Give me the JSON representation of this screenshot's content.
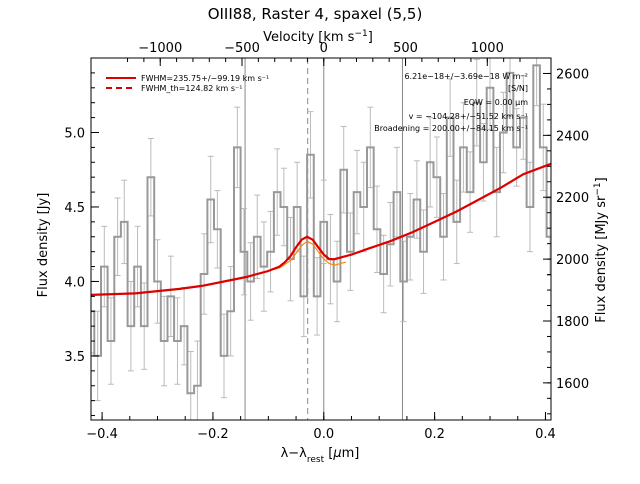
{
  "chart_data": {
    "type": "line",
    "title": "OIII88, Raster 4, spaxel (5,5)",
    "xlabel": "λ−λrest [μm]",
    "ylabel_left": "Flux density [Jy]",
    "ylabel_right": "Flux density [MJy sr⁻¹]",
    "xlabel_top": "Velocity [km s⁻¹]",
    "xlim": [
      -0.42,
      0.41
    ],
    "ylim_left": [
      3.07,
      5.5
    ],
    "ylim_right": [
      1480,
      2650
    ],
    "xticks": [
      -0.4,
      -0.2,
      0.0,
      0.2,
      0.4
    ],
    "xtick_labels": [
      "−0.4",
      "−0.2",
      "0.0",
      "0.2",
      "0.4"
    ],
    "yticks_left": [
      3.5,
      4.0,
      4.5,
      5.0
    ],
    "ytick_labels_left": [
      "3.5",
      "4.0",
      "4.5",
      "5.0"
    ],
    "yticks_right": [
      1600,
      1800,
      2000,
      2200,
      2400,
      2600
    ],
    "ytick_labels_right": [
      "1600",
      "1800",
      "2000",
      "2200",
      "2400",
      "2600"
    ],
    "velocity_ticks": [
      -1000,
      -500,
      0,
      500,
      1000
    ],
    "velocity_tick_labels": [
      "−1000",
      "−500",
      "0",
      "500",
      "1000"
    ],
    "velocity_per_micron": 3389,
    "vertical_lines_solid": [
      -0.142,
      0.0,
      0.142
    ],
    "vertical_line_dashed": -0.029,
    "legend": [
      {
        "label": "FWHM=235.75+/−99.19 km s⁻¹",
        "style": "solid",
        "color": "#dd0000"
      },
      {
        "label": "FWHM_th=124.82 km s⁻¹",
        "style": "dashed",
        "color": "#dd0000"
      }
    ],
    "annotations": [
      "6.21e−18+/−3.69e−18 W m⁻²",
      "[S/N]",
      "EQW = 0.00 μm",
      "v = −104.28+/−51.52 km s⁻¹",
      "Broadening = 200.00+/−84.15 km s⁻¹"
    ],
    "series": [
      {
        "name": "spectrum",
        "color": "#999999",
        "x": [
          -0.42,
          -0.408,
          -0.396,
          -0.384,
          -0.372,
          -0.36,
          -0.348,
          -0.336,
          -0.324,
          -0.312,
          -0.3,
          -0.288,
          -0.276,
          -0.264,
          -0.252,
          -0.24,
          -0.228,
          -0.216,
          -0.204,
          -0.192,
          -0.18,
          -0.168,
          -0.156,
          -0.144,
          -0.132,
          -0.12,
          -0.108,
          -0.096,
          -0.084,
          -0.072,
          -0.06,
          -0.048,
          -0.036,
          -0.024,
          -0.012,
          0.0,
          0.012,
          0.024,
          0.036,
          0.048,
          0.06,
          0.072,
          0.084,
          0.096,
          0.108,
          0.12,
          0.132,
          0.144,
          0.156,
          0.168,
          0.18,
          0.192,
          0.204,
          0.216,
          0.228,
          0.24,
          0.252,
          0.264,
          0.276,
          0.288,
          0.3,
          0.312,
          0.324,
          0.336,
          0.348,
          0.36,
          0.372,
          0.384,
          0.396,
          0.408
        ],
        "y": [
          3.8,
          3.5,
          4.1,
          3.6,
          4.3,
          4.4,
          3.7,
          4.1,
          3.7,
          4.7,
          4.0,
          3.6,
          3.9,
          3.6,
          3.7,
          3.25,
          3.3,
          4.05,
          4.55,
          4.35,
          3.5,
          3.8,
          4.9,
          4.2,
          4.0,
          4.3,
          4.1,
          4.2,
          4.6,
          4.5,
          4.15,
          4.5,
          3.9,
          4.85,
          3.9,
          4.4,
          4.15,
          4.0,
          4.75,
          4.2,
          4.6,
          4.5,
          4.9,
          4.35,
          4.05,
          4.25,
          4.6,
          4.0,
          4.3,
          4.55,
          4.2,
          4.8,
          4.7,
          4.3,
          5.1,
          4.4,
          4.9,
          4.6,
          5.2,
          4.8,
          5.3,
          4.6,
          5.0,
          5.4,
          4.9,
          5.1,
          4.5,
          5.45,
          4.9,
          4.3
        ],
        "errors": [
          0.28,
          0.3,
          0.27,
          0.29,
          0.26,
          0.28,
          0.3,
          0.27,
          0.29,
          0.26,
          0.28,
          0.3,
          0.27,
          0.29,
          0.26,
          0.28,
          0.3,
          0.27,
          0.29,
          0.26,
          0.28,
          0.3,
          0.27,
          0.29,
          0.26,
          0.28,
          0.3,
          0.27,
          0.29,
          0.26,
          0.28,
          0.3,
          0.27,
          0.29,
          0.26,
          0.28,
          0.3,
          0.27,
          0.29,
          0.26,
          0.28,
          0.3,
          0.27,
          0.29,
          0.26,
          0.28,
          0.3,
          0.27,
          0.29,
          0.26,
          0.28,
          0.3,
          0.27,
          0.29,
          0.26,
          0.28,
          0.3,
          0.27,
          0.29,
          0.26,
          0.28,
          0.3,
          0.27,
          0.29,
          0.26,
          0.28,
          0.3,
          0.27,
          0.29,
          0.26
        ]
      },
      {
        "name": "total-fit",
        "color": "#dd0000",
        "x": [
          -0.42,
          -0.38,
          -0.34,
          -0.3,
          -0.26,
          -0.22,
          -0.18,
          -0.14,
          -0.1,
          -0.08,
          -0.07,
          -0.06,
          -0.05,
          -0.04,
          -0.03,
          -0.02,
          -0.01,
          0.0,
          0.01,
          0.02,
          0.03,
          0.05,
          0.08,
          0.12,
          0.16,
          0.2,
          0.24,
          0.28,
          0.32,
          0.36,
          0.41
        ],
        "y": [
          3.91,
          3.915,
          3.92,
          3.935,
          3.95,
          3.97,
          4.0,
          4.03,
          4.07,
          4.1,
          4.13,
          4.17,
          4.23,
          4.28,
          4.3,
          4.28,
          4.23,
          4.18,
          4.15,
          4.15,
          4.16,
          4.18,
          4.22,
          4.27,
          4.33,
          4.4,
          4.47,
          4.55,
          4.63,
          4.72,
          4.79
        ]
      },
      {
        "name": "line-component",
        "color": "#ff8800",
        "x": [
          -0.1,
          -0.08,
          -0.06,
          -0.05,
          -0.04,
          -0.03,
          -0.02,
          -0.01,
          0.0,
          0.01,
          0.02,
          0.04
        ],
        "y": [
          4.07,
          4.09,
          4.14,
          4.19,
          4.24,
          4.27,
          4.25,
          4.2,
          4.15,
          4.12,
          4.11,
          4.13
        ]
      }
    ]
  }
}
